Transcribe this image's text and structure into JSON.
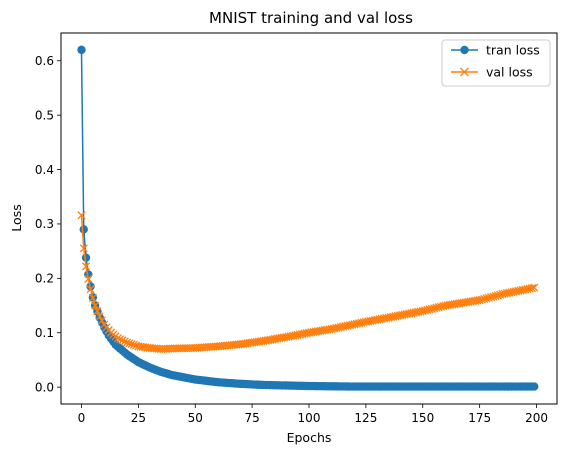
{
  "chart_data": {
    "type": "line",
    "title": "MNIST training and val loss",
    "xlabel": "Epochs",
    "ylabel": "Loss",
    "xlim": [
      -9,
      209
    ],
    "ylim": [
      -0.031,
      0.651
    ],
    "xticks": [
      0,
      25,
      50,
      75,
      100,
      125,
      150,
      175,
      200
    ],
    "yticks": [
      0.0,
      0.1,
      0.2,
      0.3,
      0.4,
      0.5,
      0.6
    ],
    "ytick_labels": [
      "0.0",
      "0.1",
      "0.2",
      "0.3",
      "0.4",
      "0.5",
      "0.6"
    ],
    "grid": false,
    "legend_position": "top-right",
    "x_range": [
      0,
      199
    ],
    "series": [
      {
        "name": "tran loss",
        "color": "#1f77b4",
        "marker": "circle",
        "keypoints": [
          [
            0,
            0.62
          ],
          [
            1,
            0.29
          ],
          [
            2,
            0.238
          ],
          [
            3,
            0.207
          ],
          [
            4,
            0.185
          ],
          [
            5,
            0.165
          ],
          [
            6,
            0.15
          ],
          [
            8,
            0.128
          ],
          [
            10,
            0.11
          ],
          [
            12,
            0.095
          ],
          [
            15,
            0.078
          ],
          [
            20,
            0.06
          ],
          [
            25,
            0.046
          ],
          [
            30,
            0.036
          ],
          [
            35,
            0.028
          ],
          [
            40,
            0.022
          ],
          [
            50,
            0.014
          ],
          [
            60,
            0.009
          ],
          [
            70,
            0.006
          ],
          [
            80,
            0.004
          ],
          [
            90,
            0.003
          ],
          [
            100,
            0.002
          ],
          [
            120,
            0.001
          ],
          [
            150,
            0.001
          ],
          [
            199,
            0.001
          ]
        ]
      },
      {
        "name": "val loss",
        "color": "#ff7f0e",
        "marker": "x",
        "keypoints": [
          [
            0,
            0.316
          ],
          [
            1,
            0.255
          ],
          [
            2,
            0.222
          ],
          [
            3,
            0.199
          ],
          [
            4,
            0.18
          ],
          [
            5,
            0.164
          ],
          [
            6,
            0.15
          ],
          [
            8,
            0.13
          ],
          [
            10,
            0.115
          ],
          [
            13,
            0.1
          ],
          [
            16,
            0.09
          ],
          [
            20,
            0.082
          ],
          [
            25,
            0.075
          ],
          [
            30,
            0.072
          ],
          [
            35,
            0.07
          ],
          [
            40,
            0.071
          ],
          [
            50,
            0.072
          ],
          [
            60,
            0.075
          ],
          [
            70,
            0.079
          ],
          [
            80,
            0.085
          ],
          [
            90,
            0.092
          ],
          [
            100,
            0.1
          ],
          [
            110,
            0.107
          ],
          [
            125,
            0.12
          ],
          [
            140,
            0.132
          ],
          [
            150,
            0.14
          ],
          [
            160,
            0.15
          ],
          [
            175,
            0.16
          ],
          [
            185,
            0.171
          ],
          [
            199,
            0.183
          ]
        ]
      }
    ]
  }
}
